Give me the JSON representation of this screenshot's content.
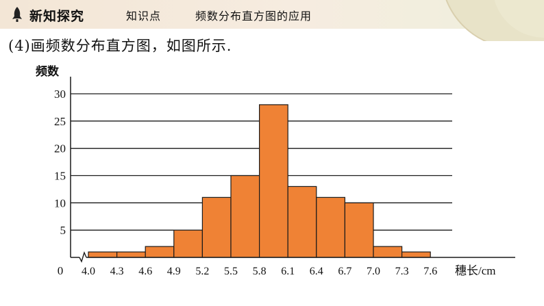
{
  "header": {
    "section_title": "新知探究",
    "knowledge_label": "知识点",
    "topic": "频数分布直方图的应用",
    "rocket_icon": "rocket-icon"
  },
  "caption": "(4)画频数分布直方图，如图所示.",
  "colors": {
    "bar_fill": "#ef8235",
    "bar_stroke": "#1a1a1a",
    "grid": "#1a1a1a",
    "topbar": "#f3e6d6",
    "deco_circle": "#e8e3c8"
  },
  "chart_data": {
    "type": "bar",
    "ylabel": "频数",
    "xlabel": "穗长/cm",
    "origin_label": "0",
    "y_ticks": [
      "5",
      "10",
      "15",
      "20",
      "25",
      "30"
    ],
    "x_ticks": [
      "4.0",
      "4.3",
      "4.6",
      "4.9",
      "5.2",
      "5.5",
      "5.8",
      "6.1",
      "6.4",
      "6.7",
      "7.0",
      "7.3",
      "7.6"
    ],
    "bins": [
      {
        "from": 4.0,
        "to": 4.3,
        "value": 1
      },
      {
        "from": 4.3,
        "to": 4.6,
        "value": 1
      },
      {
        "from": 4.6,
        "to": 4.9,
        "value": 2
      },
      {
        "from": 4.9,
        "to": 5.2,
        "value": 5
      },
      {
        "from": 5.2,
        "to": 5.5,
        "value": 11
      },
      {
        "from": 5.5,
        "to": 5.8,
        "value": 15
      },
      {
        "from": 5.8,
        "to": 6.1,
        "value": 28
      },
      {
        "from": 6.1,
        "to": 6.4,
        "value": 13
      },
      {
        "from": 6.4,
        "to": 6.7,
        "value": 11
      },
      {
        "from": 6.7,
        "to": 7.0,
        "value": 10
      },
      {
        "from": 7.0,
        "to": 7.3,
        "value": 2
      },
      {
        "from": 7.3,
        "to": 7.6,
        "value": 1
      }
    ],
    "ylim": [
      0,
      30
    ],
    "grid": true,
    "axis_break": true
  }
}
